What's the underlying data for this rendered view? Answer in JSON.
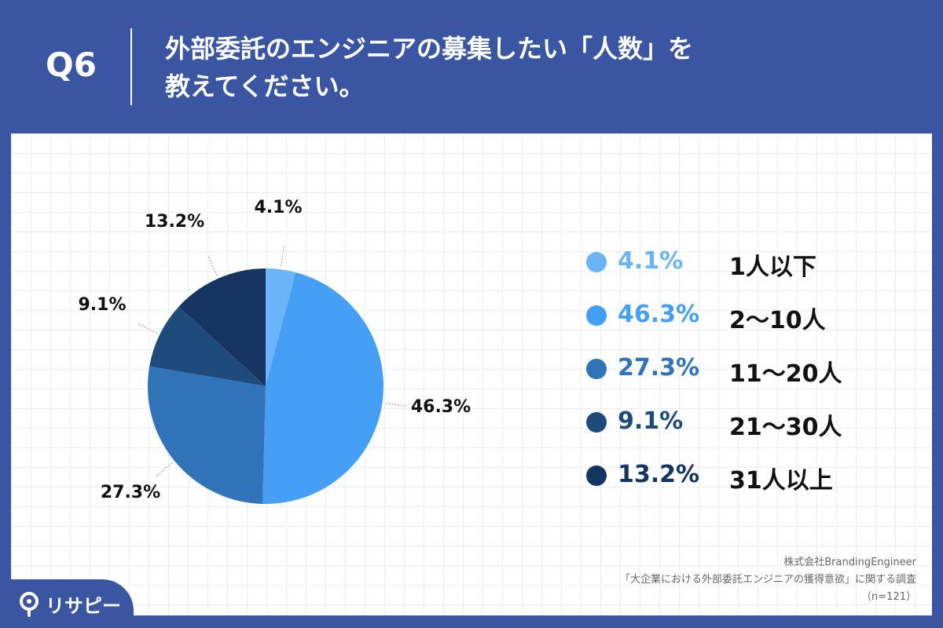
{
  "header": {
    "question_label": "Q6",
    "title_line1": "外部委託のエンジニアの募集したい「人数」を",
    "title_line2": "教えてください。"
  },
  "chart_data": {
    "type": "pie",
    "categories": [
      "1人以下",
      "2〜10人",
      "11〜20人",
      "21〜30人",
      "31人以上"
    ],
    "values": [
      4.1,
      46.3,
      27.3,
      9.1,
      13.2
    ],
    "value_labels": [
      "4.1%",
      "46.3%",
      "27.3%",
      "9.1%",
      "13.2%"
    ],
    "colors": [
      "#6cb4f8",
      "#459ff5",
      "#3173b8",
      "#1e4a7c",
      "#163461"
    ],
    "start_angle": "12 o'clock",
    "direction": "clockwise",
    "legend_position": "right"
  },
  "source": {
    "line1": "株式会社BrandingEngineer",
    "line2": "「大企業における外部委託エンジニアの獲得意欲」に関する調査",
    "line3": "（n=121）"
  },
  "brand": {
    "name": "リサピー"
  }
}
